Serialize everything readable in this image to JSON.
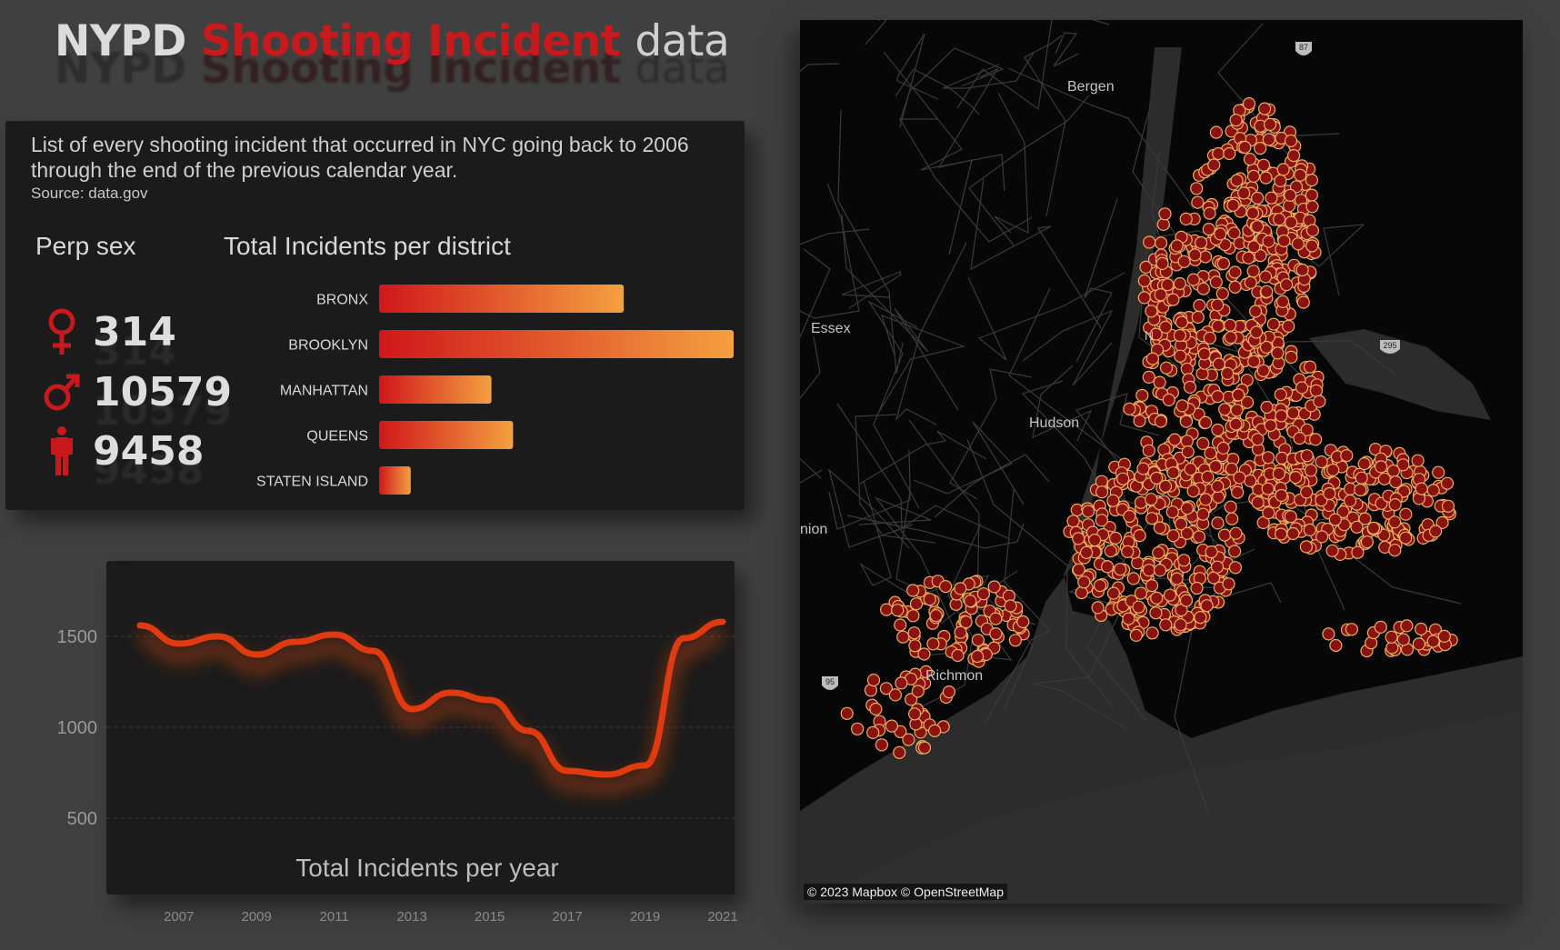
{
  "header": {
    "title_part1": "NYPD",
    "title_part2": "Shooting Incident",
    "title_part3": "data"
  },
  "info": {
    "description": "List of every shooting incident that occurred in NYC going back to 2006 through the end of the previous calendar year.",
    "source": "Source: data.gov"
  },
  "perp_sex": {
    "heading": "Perp sex",
    "items": [
      {
        "label_icon": "female-symbol-icon",
        "value": "314"
      },
      {
        "label_icon": "male-symbol-icon",
        "value": "10579"
      },
      {
        "label_icon": "person-unknown-icon",
        "value": "9458"
      }
    ]
  },
  "colors": {
    "accent_red": "#c8191c",
    "bar_start": "#d0171a",
    "bar_end": "#f4a040",
    "line": "#e03a10",
    "dot_fill": "#8a1212",
    "dot_stroke": "#e8b060",
    "panel_bg": "#1b1b1b",
    "page_bg": "#404040"
  },
  "chart_data": [
    {
      "type": "bar",
      "title": "Total Incidents per district",
      "orientation": "horizontal",
      "categories": [
        "BRONX",
        "BROOKLYN",
        "MANHATTAN",
        "QUEENS",
        "STATEN ISLAND"
      ],
      "values": [
        5880,
        8520,
        2700,
        3220,
        760
      ],
      "xlim": [
        0,
        8520
      ]
    },
    {
      "type": "line",
      "title": "Total Incidents per year",
      "x": [
        2006,
        2007,
        2008,
        2009,
        2010,
        2011,
        2012,
        2013,
        2014,
        2015,
        2016,
        2017,
        2018,
        2019,
        2020,
        2021
      ],
      "values": [
        1560,
        1460,
        1500,
        1400,
        1470,
        1510,
        1420,
        1100,
        1190,
        1150,
        980,
        760,
        740,
        790,
        1490,
        1580
      ],
      "ylim": [
        300,
        1700
      ],
      "yticks": [
        500,
        1000,
        1500
      ],
      "xticks": [
        2007,
        2009,
        2011,
        2013,
        2015,
        2017,
        2019,
        2021
      ],
      "grid": true
    }
  ],
  "map": {
    "labels": [
      "Bergen",
      "Essex",
      "Hudson",
      "nion",
      "Richmon",
      "N"
    ],
    "highway_shields": [
      "87",
      "295",
      "95"
    ],
    "credit": "© 2023 Mapbox  © OpenStreetMap"
  }
}
